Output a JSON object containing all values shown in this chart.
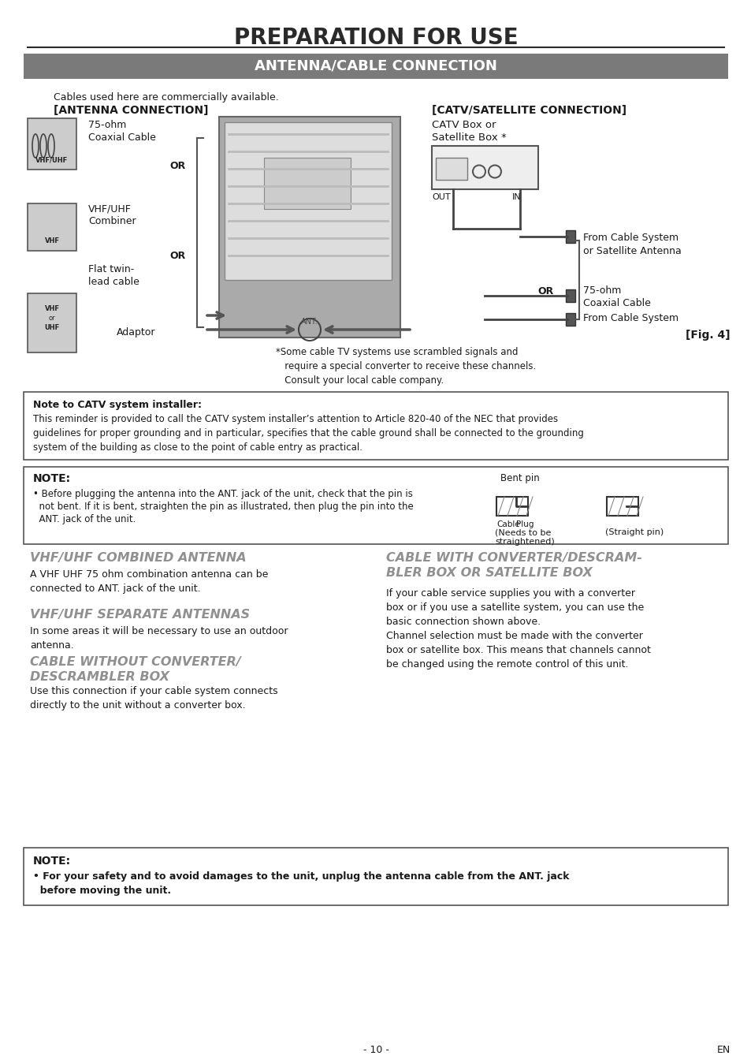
{
  "title": "PREPARATION FOR USE",
  "subtitle": "ANTENNA/CABLE CONNECTION",
  "subtitle_bg": "#7a7a7a",
  "page_bg": "#ffffff",
  "page_number": "- 10 -",
  "page_en": "EN",
  "cables_text": "Cables used here are commercially available.",
  "antenna_conn_label": "[ANTENNA CONNECTION]",
  "catv_conn_label": "[CATV/SATELLITE CONNECTION]",
  "ant_item1": "75-ohm\nCoaxial Cable",
  "ant_item2": "VHF/UHF\nCombiner",
  "ant_item3": "Flat twin-\nlead cable",
  "ant_item4": "Adaptor",
  "ant_or1": "OR",
  "ant_or2": "OR",
  "catv_item1": "CATV Box or\nSatellite Box *",
  "catv_out": "OUT",
  "catv_in": "IN",
  "catv_item2": "From Cable System\nor Satellite Antenna",
  "catv_item3": "75-ohm\nCoaxial Cable",
  "catv_or": "OR",
  "catv_item4": "From Cable System",
  "catv_fig": "[Fig. 4]",
  "scramble_text": "*Some cable TV systems use scrambled signals and\n   require a special converter to receive these channels.\n   Consult your local cable company.",
  "note_catv_title": "Note to CATV system installer:",
  "note_catv_body": "This reminder is provided to call the CATV system installer’s attention to Article 820-40 of the NEC that provides\nguidelines for proper grounding and in particular, specifies that the cable ground shall be connected to the grounding\nsystem of the building as close to the point of cable entry as practical.",
  "note2_title": "NOTE:",
  "note2_body1": "• Before plugging the antenna into the ANT. jack of the unit, check that the pin is",
  "note2_body2": "  not bent. If it is bent, straighten the pin as illustrated, then plug the pin into the",
  "note2_body3": "  ANT. jack of the unit.",
  "note2_bent": "Bent pin",
  "note2_cable": "Cable",
  "note2_plug": "Plug",
  "note2_needs": "(Needs to be\nstraightened)",
  "note2_straight": "(Straight pin)",
  "sec1_title": "VHF/UHF COMBINED ANTENNA",
  "sec1_body": "A VHF UHF 75 ohm combination antenna can be\nconnected to ANT. jack of the unit.",
  "sec2_title": "VHF/UHF SEPARATE ANTENNAS",
  "sec2_body": "In some areas it will be necessary to use an outdoor\nantenna.",
  "sec3_title": "CABLE WITHOUT CONVERTER/\nDESCRAMBLER BOX",
  "sec3_body": "Use this connection if your cable system connects\ndirectly to the unit without a converter box.",
  "sec4_title": "CABLE WITH CONVERTER/DESCRAM-\nBLER BOX OR SATELLITE BOX",
  "sec4_body": "If your cable service supplies you with a converter\nbox or if you use a satellite system, you can use the\nbasic connection shown above.\nChannel selection must be made with the converter\nbox or satellite box. This means that channels cannot\nbe changed using the remote control of this unit.",
  "note3_title": "NOTE:",
  "note3_body": "• For your safety and to avoid damages to the unit, unplug the antenna cable from the ANT. jack\n  before moving the unit.",
  "gray_color": "#606060",
  "section_title_color": "#909090",
  "text_color": "#1a1a1a",
  "box_edge_color": "#555555"
}
